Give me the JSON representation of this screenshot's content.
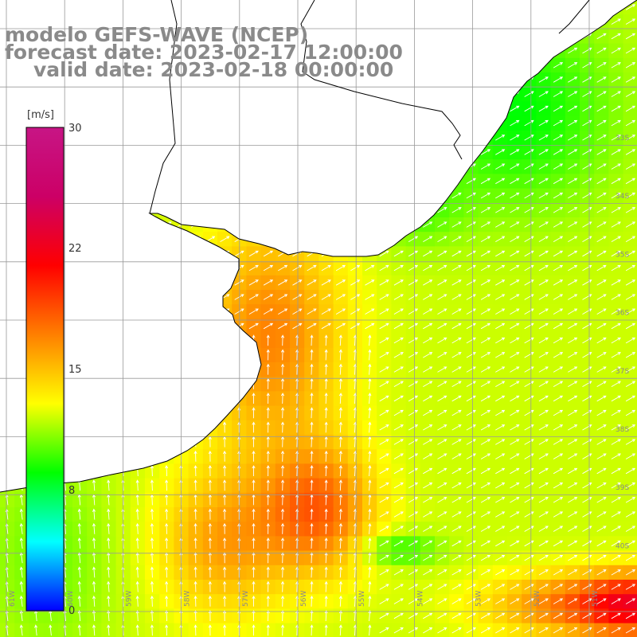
{
  "title": {
    "line1": "modelo GEFS-WAVE (NCEP)",
    "line2": "forecast date: 2023-02-17 12:00:00",
    "line3": "valid date: 2023-02-18 00:00:00"
  },
  "colorbar": {
    "unit": "[m/s]",
    "min": 0,
    "max": 30,
    "ticks": [
      "30",
      "22",
      "15",
      "8",
      "0"
    ],
    "gradient": [
      "#0000ff",
      "#00ffff",
      "#00ff00",
      "#ffff00",
      "#ff7f00",
      "#ff0000",
      "#cc0066",
      "#c71585"
    ]
  },
  "map": {
    "lon_range": [
      -61.8,
      -50.2
    ],
    "lat_range": [
      -41.3,
      -30.3
    ],
    "lon_labels": [
      "61W",
      "60W",
      "59W",
      "58W",
      "57W",
      "56W",
      "55W",
      "54W",
      "53W",
      "52W",
      "51W"
    ],
    "lat_labels": [
      "33S",
      "34S",
      "35S",
      "36S",
      "37S",
      "38S",
      "39S",
      "40S"
    ],
    "land_color": "#ffffff",
    "coast_color": "#000000",
    "grid_color": "#999999",
    "arrow_color": "#ffffff"
  }
}
